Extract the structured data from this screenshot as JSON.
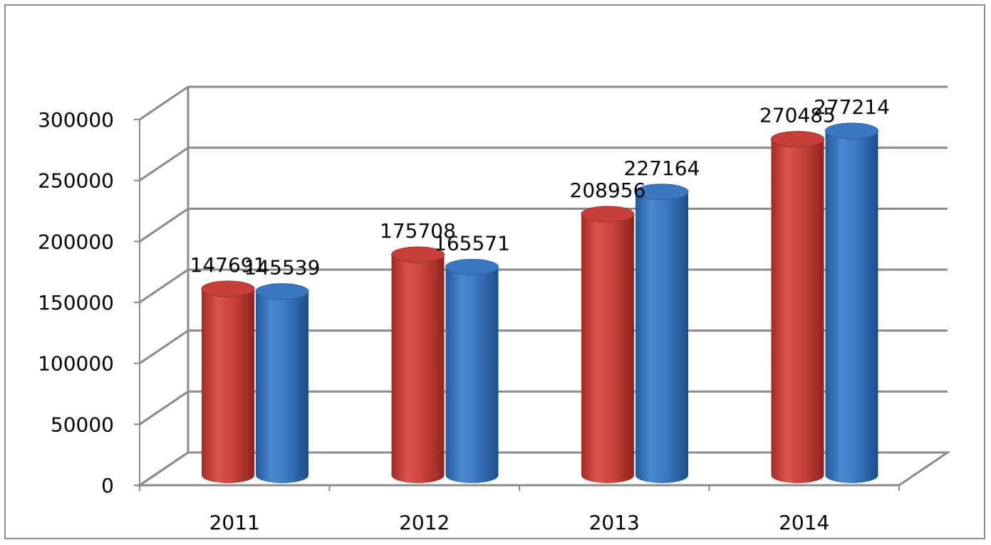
{
  "chart_data": {
    "type": "bar",
    "style": "3d-cylinder",
    "categories": [
      "2011",
      "2012",
      "2013",
      "2014"
    ],
    "series": [
      {
        "values": [
          147691,
          175708,
          208956,
          270485
        ],
        "color": "#c83c37"
      },
      {
        "values": [
          145539,
          165571,
          227164,
          277214
        ],
        "color": "#3470b8"
      }
    ],
    "ylim": [
      0,
      300000
    ],
    "yticks": [
      "0",
      "50000",
      "100000",
      "150000",
      "200000",
      "250000",
      "300000"
    ],
    "grid": true,
    "legend": "none",
    "title": "",
    "xlabel": "",
    "ylabel": ""
  }
}
